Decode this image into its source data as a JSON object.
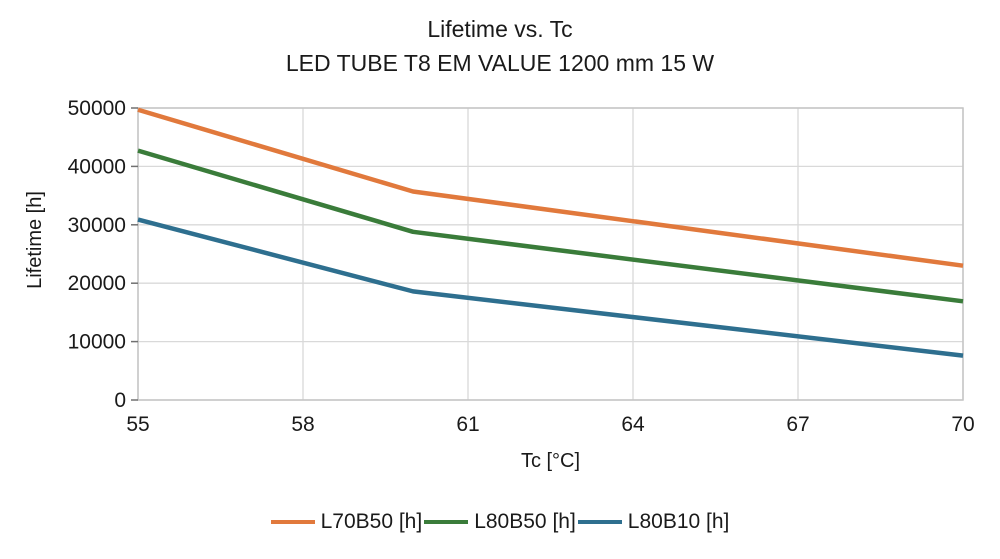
{
  "chart_data": {
    "type": "line",
    "title": "Lifetime vs. Tc",
    "subtitle": "LED TUBE T8 EM VALUE 1200 mm 15 W",
    "xlabel": "Tc [°C]",
    "ylabel": "Lifetime [h]",
    "xlim": [
      55,
      70
    ],
    "ylim": [
      0,
      50000
    ],
    "x_ticks": [
      55,
      58,
      61,
      64,
      67,
      70
    ],
    "y_ticks": [
      0,
      10000,
      20000,
      30000,
      40000,
      50000
    ],
    "grid": true,
    "legend_position": "bottom",
    "x": [
      55,
      60,
      70
    ],
    "series": [
      {
        "name": "L70B50 [h]",
        "color": "#E1793C",
        "values": [
          49700,
          35700,
          23000
        ]
      },
      {
        "name": "L80B50 [h]",
        "color": "#3A7C3A",
        "values": [
          42700,
          28800,
          16900
        ]
      },
      {
        "name": "L80B10 [h]",
        "color": "#2E6F8F",
        "values": [
          30900,
          18600,
          7600
        ]
      }
    ]
  },
  "colors": {
    "background": "#FFFFFF",
    "grid": "#D9D9D9",
    "axis_box": "#C4C4C4",
    "tick_mark": "#707070",
    "text": "#1A1A1A"
  }
}
